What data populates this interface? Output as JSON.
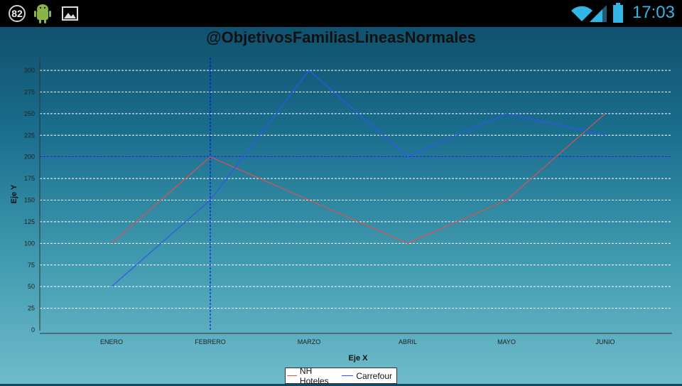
{
  "status_bar": {
    "notification_count": "82",
    "icons": [
      "notification-count-icon",
      "android-icon",
      "image-icon"
    ],
    "right_icons": [
      "wifi-icon",
      "signal-icon",
      "battery-icon"
    ],
    "time": "17:03",
    "accent_color": "#33b5e5"
  },
  "chart_data": {
    "type": "line",
    "title": "@ObjetivosFamiliasLineasNormales",
    "xlabel": "Eje X",
    "ylabel": "Eje Y",
    "categories": [
      "ENERO",
      "FEBRERO",
      "MARZO",
      "ABRIL",
      "MAYO",
      "JUNIO"
    ],
    "ylim": [
      0,
      300
    ],
    "yticks": [
      "0",
      "25",
      "50",
      "75",
      "100",
      "125",
      "150",
      "175",
      "200",
      "225",
      "250",
      "275",
      "300"
    ],
    "grid": true,
    "series": [
      {
        "name": "NH Hoteles",
        "color": "#e05050",
        "values": [
          100,
          200,
          150,
          100,
          150,
          250
        ]
      },
      {
        "name": "Carrefour",
        "color": "#3355ee",
        "values": [
          50,
          150,
          300,
          200,
          250,
          225
        ]
      }
    ],
    "crosshair": {
      "category": "FEBRERO",
      "value": 200,
      "color": "#0000ff"
    },
    "legend_position": "bottom-center"
  }
}
